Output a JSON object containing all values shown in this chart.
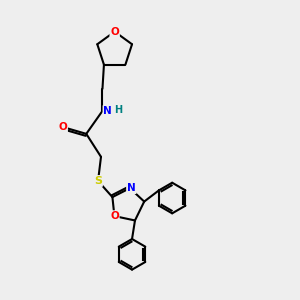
{
  "background_color": "#eeeeee",
  "bond_color": "#000000",
  "atom_colors": {
    "O": "#ff0000",
    "N": "#0000ff",
    "S": "#cccc00",
    "H": "#008080",
    "C": "#000000"
  },
  "figsize": [
    3.0,
    3.0
  ],
  "dpi": 100
}
